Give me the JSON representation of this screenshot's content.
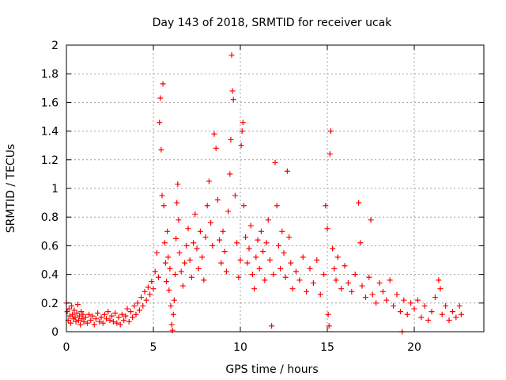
{
  "chart_data": {
    "type": "scatter",
    "title": "Day 143 of 2018, SRMTID for receiver ucak",
    "xlabel": "GPS time / hours",
    "ylabel": "SRMTID / TECUs",
    "xlim": [
      0,
      24
    ],
    "ylim": [
      0,
      2
    ],
    "x_ticks": [
      0,
      5,
      10,
      15,
      20
    ],
    "x_tick_labels": [
      "0",
      "5",
      "10",
      "15",
      "20"
    ],
    "y_ticks": [
      0,
      0.2,
      0.4,
      0.6,
      0.8,
      1,
      1.2,
      1.4,
      1.6,
      1.8,
      2
    ],
    "y_tick_labels": [
      "0",
      "0.2",
      "0.4",
      "0.6",
      "0.8",
      "1",
      "1.2",
      "1.4",
      "1.6",
      "1.8",
      "2"
    ],
    "grid": true,
    "marker": "+",
    "marker_color": "#ff0000",
    "series": [
      {
        "name": "ucak",
        "points": [
          [
            0.0,
            0.2
          ],
          [
            0.05,
            0.14
          ],
          [
            0.1,
            0.08
          ],
          [
            0.15,
            0.16
          ],
          [
            0.2,
            0.11
          ],
          [
            0.25,
            0.06
          ],
          [
            0.3,
            0.18
          ],
          [
            0.35,
            0.12
          ],
          [
            0.4,
            0.09
          ],
          [
            0.45,
            0.15
          ],
          [
            0.5,
            0.1
          ],
          [
            0.55,
            0.07
          ],
          [
            0.6,
            0.13
          ],
          [
            0.65,
            0.19
          ],
          [
            0.7,
            0.08
          ],
          [
            0.75,
            0.11
          ],
          [
            0.8,
            0.05
          ],
          [
            0.85,
            0.14
          ],
          [
            0.9,
            0.09
          ],
          [
            0.95,
            0.12
          ],
          [
            1.0,
            0.07
          ],
          [
            1.1,
            0.1
          ],
          [
            1.2,
            0.06
          ],
          [
            1.3,
            0.12
          ],
          [
            1.4,
            0.08
          ],
          [
            1.5,
            0.11
          ],
          [
            1.6,
            0.05
          ],
          [
            1.7,
            0.09
          ],
          [
            1.8,
            0.13
          ],
          [
            1.9,
            0.07
          ],
          [
            2.0,
            0.1
          ],
          [
            2.1,
            0.06
          ],
          [
            2.2,
            0.12
          ],
          [
            2.3,
            0.09
          ],
          [
            2.4,
            0.14
          ],
          [
            2.5,
            0.08
          ],
          [
            2.6,
            0.11
          ],
          [
            2.7,
            0.07
          ],
          [
            2.8,
            0.13
          ],
          [
            2.9,
            0.06
          ],
          [
            3.0,
            0.1
          ],
          [
            3.1,
            0.05
          ],
          [
            3.2,
            0.12
          ],
          [
            3.3,
            0.08
          ],
          [
            3.4,
            0.11
          ],
          [
            3.5,
            0.16
          ],
          [
            3.6,
            0.07
          ],
          [
            3.7,
            0.14
          ],
          [
            3.8,
            0.1
          ],
          [
            3.9,
            0.18
          ],
          [
            4.0,
            0.12
          ],
          [
            4.1,
            0.2
          ],
          [
            4.2,
            0.15
          ],
          [
            4.3,
            0.24
          ],
          [
            4.4,
            0.18
          ],
          [
            4.5,
            0.28
          ],
          [
            4.6,
            0.22
          ],
          [
            4.7,
            0.31
          ],
          [
            4.8,
            0.26
          ],
          [
            4.9,
            0.35
          ],
          [
            5.0,
            0.3
          ],
          [
            5.1,
            0.42
          ],
          [
            5.2,
            0.55
          ],
          [
            5.3,
            0.38
          ],
          [
            5.35,
            1.46
          ],
          [
            5.4,
            1.63
          ],
          [
            5.45,
            1.27
          ],
          [
            5.5,
            0.95
          ],
          [
            5.55,
            1.73
          ],
          [
            5.6,
            0.88
          ],
          [
            5.65,
            0.62
          ],
          [
            5.7,
            0.48
          ],
          [
            5.75,
            0.35
          ],
          [
            5.8,
            0.7
          ],
          [
            5.85,
            0.52
          ],
          [
            5.9,
            0.29
          ],
          [
            5.95,
            0.44
          ],
          [
            6.0,
            0.18
          ],
          [
            6.05,
            0.05
          ],
          [
            6.1,
            0.01
          ],
          [
            6.15,
            0.12
          ],
          [
            6.2,
            0.22
          ],
          [
            6.25,
            0.4
          ],
          [
            6.3,
            0.65
          ],
          [
            6.35,
            0.9
          ],
          [
            6.4,
            1.03
          ],
          [
            6.45,
            0.78
          ],
          [
            6.5,
            0.55
          ],
          [
            6.6,
            0.42
          ],
          [
            6.7,
            0.32
          ],
          [
            6.8,
            0.48
          ],
          [
            6.9,
            0.6
          ],
          [
            7.0,
            0.72
          ],
          [
            7.1,
            0.5
          ],
          [
            7.2,
            0.38
          ],
          [
            7.3,
            0.62
          ],
          [
            7.4,
            0.82
          ],
          [
            7.5,
            0.58
          ],
          [
            7.6,
            0.44
          ],
          [
            7.7,
            0.7
          ],
          [
            7.8,
            0.52
          ],
          [
            7.9,
            0.36
          ],
          [
            8.0,
            0.66
          ],
          [
            8.1,
            0.88
          ],
          [
            8.2,
            1.05
          ],
          [
            8.3,
            0.76
          ],
          [
            8.4,
            0.6
          ],
          [
            8.5,
            1.38
          ],
          [
            8.6,
            1.28
          ],
          [
            8.7,
            0.92
          ],
          [
            8.8,
            0.64
          ],
          [
            8.9,
            0.48
          ],
          [
            9.0,
            0.7
          ],
          [
            9.1,
            0.56
          ],
          [
            9.2,
            0.42
          ],
          [
            9.3,
            0.84
          ],
          [
            9.4,
            1.1
          ],
          [
            9.45,
            1.34
          ],
          [
            9.5,
            1.93
          ],
          [
            9.55,
            1.68
          ],
          [
            9.6,
            1.62
          ],
          [
            9.7,
            0.95
          ],
          [
            9.8,
            0.62
          ],
          [
            9.9,
            0.38
          ],
          [
            10.0,
            0.5
          ],
          [
            10.05,
            1.3
          ],
          [
            10.1,
            1.4
          ],
          [
            10.15,
            1.46
          ],
          [
            10.2,
            0.88
          ],
          [
            10.3,
            0.66
          ],
          [
            10.4,
            0.48
          ],
          [
            10.5,
            0.58
          ],
          [
            10.6,
            0.74
          ],
          [
            10.7,
            0.4
          ],
          [
            10.8,
            0.3
          ],
          [
            10.9,
            0.52
          ],
          [
            11.0,
            0.64
          ],
          [
            11.1,
            0.44
          ],
          [
            11.2,
            0.7
          ],
          [
            11.3,
            0.56
          ],
          [
            11.4,
            0.36
          ],
          [
            11.5,
            0.62
          ],
          [
            11.6,
            0.78
          ],
          [
            11.7,
            0.5
          ],
          [
            11.8,
            0.04
          ],
          [
            11.9,
            0.4
          ],
          [
            12.0,
            1.18
          ],
          [
            12.1,
            0.88
          ],
          [
            12.2,
            0.6
          ],
          [
            12.3,
            0.44
          ],
          [
            12.4,
            0.7
          ],
          [
            12.5,
            0.55
          ],
          [
            12.6,
            0.38
          ],
          [
            12.7,
            1.12
          ],
          [
            12.8,
            0.66
          ],
          [
            12.9,
            0.48
          ],
          [
            13.0,
            0.3
          ],
          [
            13.2,
            0.42
          ],
          [
            13.4,
            0.36
          ],
          [
            13.6,
            0.52
          ],
          [
            13.8,
            0.28
          ],
          [
            14.0,
            0.44
          ],
          [
            14.2,
            0.34
          ],
          [
            14.4,
            0.5
          ],
          [
            14.6,
            0.26
          ],
          [
            14.8,
            0.4
          ],
          [
            14.9,
            0.88
          ],
          [
            15.0,
            0.72
          ],
          [
            15.05,
            0.12
          ],
          [
            15.1,
            0.04
          ],
          [
            15.15,
            1.24
          ],
          [
            15.2,
            1.4
          ],
          [
            15.3,
            0.58
          ],
          [
            15.4,
            0.44
          ],
          [
            15.5,
            0.36
          ],
          [
            15.6,
            0.52
          ],
          [
            15.8,
            0.3
          ],
          [
            16.0,
            0.46
          ],
          [
            16.2,
            0.34
          ],
          [
            16.4,
            0.28
          ],
          [
            16.6,
            0.4
          ],
          [
            16.8,
            0.9
          ],
          [
            16.9,
            0.62
          ],
          [
            17.0,
            0.32
          ],
          [
            17.2,
            0.24
          ],
          [
            17.4,
            0.38
          ],
          [
            17.5,
            0.78
          ],
          [
            17.6,
            0.26
          ],
          [
            17.8,
            0.2
          ],
          [
            18.0,
            0.34
          ],
          [
            18.2,
            0.28
          ],
          [
            18.4,
            0.22
          ],
          [
            18.6,
            0.36
          ],
          [
            18.8,
            0.18
          ],
          [
            19.0,
            0.26
          ],
          [
            19.2,
            0.14
          ],
          [
            19.3,
            0.0
          ],
          [
            19.4,
            0.22
          ],
          [
            19.6,
            0.12
          ],
          [
            19.8,
            0.2
          ],
          [
            20.0,
            0.16
          ],
          [
            20.2,
            0.22
          ],
          [
            20.4,
            0.1
          ],
          [
            20.6,
            0.18
          ],
          [
            20.8,
            0.08
          ],
          [
            21.0,
            0.14
          ],
          [
            21.2,
            0.24
          ],
          [
            21.4,
            0.36
          ],
          [
            21.5,
            0.3
          ],
          [
            21.6,
            0.12
          ],
          [
            21.8,
            0.18
          ],
          [
            22.0,
            0.08
          ],
          [
            22.2,
            0.14
          ],
          [
            22.4,
            0.1
          ],
          [
            22.6,
            0.18
          ],
          [
            22.7,
            0.12
          ]
        ]
      }
    ]
  }
}
